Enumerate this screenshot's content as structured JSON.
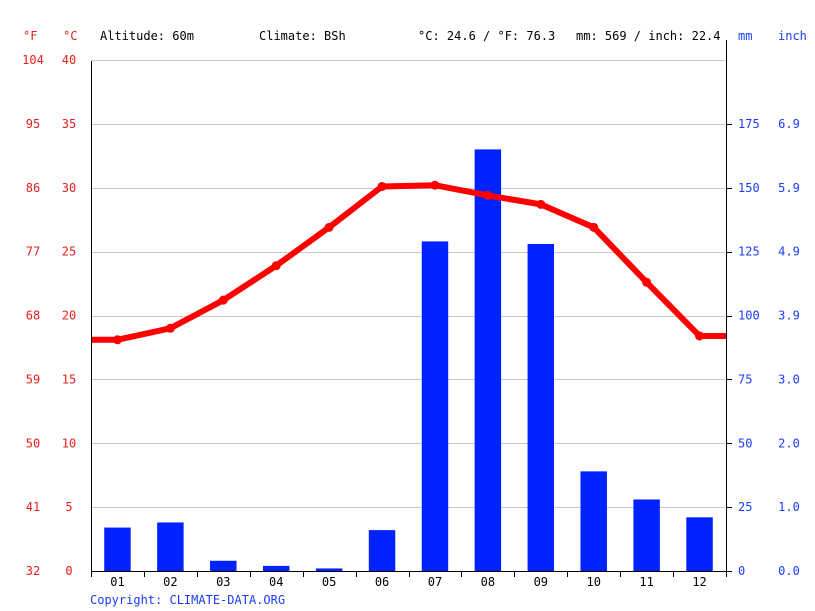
{
  "header": {
    "unit_f": "°F",
    "unit_c": "°C",
    "altitude": "Altitude: 60m",
    "climate": "Climate: BSh",
    "temp_avg": "°C: 24.6 / °F: 76.3",
    "precip_total": "mm: 569 / inch: 22.4",
    "unit_mm": "mm",
    "unit_inch": "inch"
  },
  "footer": {
    "copyright": "Copyright: CLIMATE-DATA.ORG"
  },
  "colors": {
    "temperature": "#ff0000",
    "precipitation": "#0022ff",
    "left_axis_text": "#e8201d",
    "right_axis_text": "#1b3dfa",
    "grid": "#c8c8c8"
  },
  "chart_data": {
    "type": "bar",
    "categories": [
      "01",
      "02",
      "03",
      "04",
      "05",
      "06",
      "07",
      "08",
      "09",
      "10",
      "11",
      "12"
    ],
    "series": [
      {
        "type": "bar",
        "axis": "right",
        "values": [
          17,
          19,
          4,
          2,
          1,
          16,
          129,
          165,
          128,
          39,
          28,
          21
        ]
      },
      {
        "type": "line",
        "axis": "left",
        "values": [
          18.1,
          19.0,
          21.2,
          23.9,
          26.9,
          30.1,
          30.2,
          29.4,
          28.7,
          26.9,
          22.6,
          18.4
        ]
      }
    ],
    "left_axis": {
      "celsius_ticks": [
        "0",
        "5",
        "10",
        "15",
        "20",
        "25",
        "30",
        "35",
        "40"
      ],
      "fahrenheit_ticks": [
        "32",
        "41",
        "50",
        "59",
        "68",
        "77",
        "86",
        "95",
        "104"
      ],
      "ylim": [
        0,
        40
      ]
    },
    "right_axis": {
      "mm_ticks": [
        "0",
        "25",
        "50",
        "75",
        "100",
        "125",
        "150",
        "175"
      ],
      "inch_ticks": [
        "0.0",
        "1.0",
        "2.0",
        "3.0",
        "3.9",
        "4.9",
        "5.9",
        "6.9"
      ],
      "ylim": [
        0,
        200
      ]
    },
    "grid": true
  }
}
